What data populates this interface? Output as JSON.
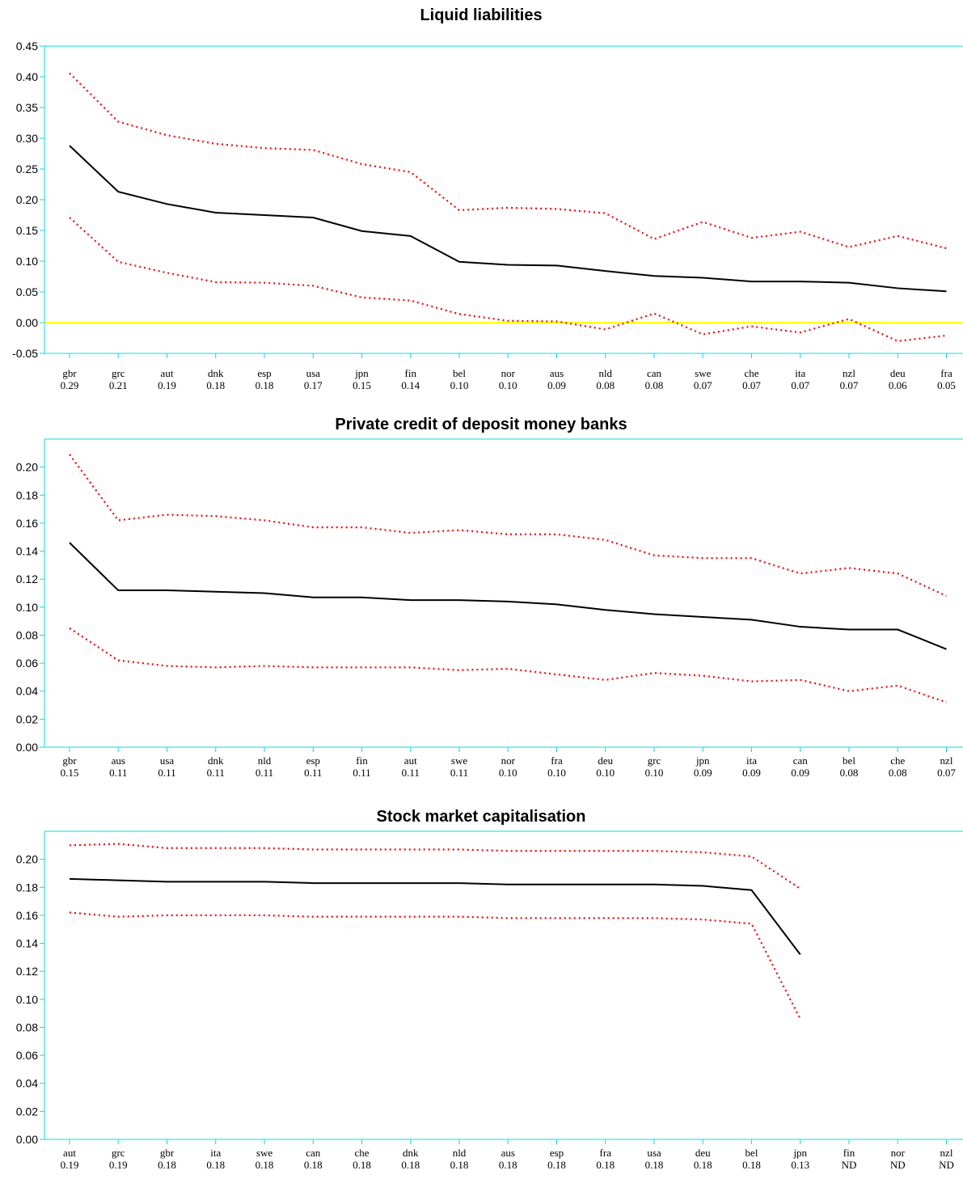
{
  "chart_data": [
    {
      "type": "line",
      "title": "Liquid liabilities",
      "ylim": [
        -0.05,
        0.45
      ],
      "yticks": [
        "-0.05",
        "0.00",
        "0.05",
        "0.10",
        "0.15",
        "0.20",
        "0.25",
        "0.30",
        "0.35",
        "0.40",
        "0.45"
      ],
      "categories": [
        "gbr",
        "grc",
        "aut",
        "dnk",
        "esp",
        "usa",
        "jpn",
        "fin",
        "bel",
        "nor",
        "aus",
        "nld",
        "can",
        "swe",
        "che",
        "ita",
        "nzl",
        "deu",
        "fra"
      ],
      "category_values": [
        "0.29",
        "0.21",
        "0.19",
        "0.18",
        "0.18",
        "0.17",
        "0.15",
        "0.14",
        "0.10",
        "0.10",
        "0.09",
        "0.08",
        "0.08",
        "0.07",
        "0.07",
        "0.07",
        "0.07",
        "0.06",
        "0.05"
      ],
      "zero_line": true,
      "series": [
        {
          "style": "solid",
          "color": "#000000",
          "values": [
            0.288,
            0.213,
            0.193,
            0.179,
            0.175,
            0.171,
            0.149,
            0.141,
            0.099,
            0.094,
            0.093,
            0.084,
            0.076,
            0.073,
            0.067,
            0.067,
            0.065,
            0.056,
            0.051
          ]
        },
        {
          "style": "dotted",
          "color": "#ff0000",
          "values": [
            0.406,
            0.327,
            0.305,
            0.291,
            0.284,
            0.281,
            0.258,
            0.245,
            0.183,
            0.187,
            0.185,
            0.178,
            0.136,
            0.164,
            0.138,
            0.148,
            0.123,
            0.141,
            0.121
          ]
        },
        {
          "style": "dotted",
          "color": "#ff0000",
          "values": [
            0.171,
            0.099,
            0.081,
            0.066,
            0.065,
            0.06,
            0.041,
            0.036,
            0.014,
            0.003,
            0.002,
            -0.011,
            0.015,
            -0.019,
            -0.006,
            -0.016,
            0.006,
            -0.03,
            -0.021
          ]
        }
      ]
    },
    {
      "type": "line",
      "title": "Private credit of deposit money banks",
      "ylim": [
        0.0,
        0.22
      ],
      "yticks": [
        "0.00",
        "0.02",
        "0.04",
        "0.06",
        "0.08",
        "0.10",
        "0.12",
        "0.14",
        "0.16",
        "0.18",
        "0.20"
      ],
      "categories": [
        "gbr",
        "aus",
        "usa",
        "dnk",
        "nld",
        "esp",
        "fin",
        "aut",
        "swe",
        "nor",
        "fra",
        "deu",
        "grc",
        "jpn",
        "ita",
        "can",
        "bel",
        "che",
        "nzl"
      ],
      "category_values": [
        "0.15",
        "0.11",
        "0.11",
        "0.11",
        "0.11",
        "0.11",
        "0.11",
        "0.11",
        "0.11",
        "0.10",
        "0.10",
        "0.10",
        "0.10",
        "0.09",
        "0.09",
        "0.09",
        "0.08",
        "0.08",
        "0.07"
      ],
      "zero_line": false,
      "series": [
        {
          "style": "solid",
          "color": "#000000",
          "values": [
            0.146,
            0.112,
            0.112,
            0.111,
            0.11,
            0.107,
            0.107,
            0.105,
            0.105,
            0.104,
            0.102,
            0.098,
            0.095,
            0.093,
            0.091,
            0.086,
            0.084,
            0.084,
            0.07
          ]
        },
        {
          "style": "dotted",
          "color": "#ff0000",
          "values": [
            0.209,
            0.162,
            0.166,
            0.165,
            0.162,
            0.157,
            0.157,
            0.153,
            0.155,
            0.152,
            0.152,
            0.148,
            0.137,
            0.135,
            0.135,
            0.124,
            0.128,
            0.124,
            0.108
          ]
        },
        {
          "style": "dotted",
          "color": "#ff0000",
          "values": [
            0.085,
            0.062,
            0.058,
            0.057,
            0.058,
            0.057,
            0.057,
            0.057,
            0.055,
            0.056,
            0.052,
            0.048,
            0.053,
            0.051,
            0.047,
            0.048,
            0.04,
            0.044,
            0.032
          ]
        }
      ]
    },
    {
      "type": "line",
      "title": "Stock market capitalisation",
      "ylim": [
        0.0,
        0.22
      ],
      "yticks": [
        "0.00",
        "0.02",
        "0.04",
        "0.06",
        "0.08",
        "0.10",
        "0.12",
        "0.14",
        "0.16",
        "0.18",
        "0.20"
      ],
      "categories": [
        "aut",
        "grc",
        "gbr",
        "ita",
        "swe",
        "can",
        "che",
        "dnk",
        "nld",
        "aus",
        "esp",
        "fra",
        "usa",
        "deu",
        "bel",
        "jpn",
        "fin",
        "nor",
        "nzl"
      ],
      "category_values": [
        "0.19",
        "0.19",
        "0.18",
        "0.18",
        "0.18",
        "0.18",
        "0.18",
        "0.18",
        "0.18",
        "0.18",
        "0.18",
        "0.18",
        "0.18",
        "0.18",
        "0.18",
        "0.13",
        "ND",
        "ND",
        "ND"
      ],
      "zero_line": false,
      "series": [
        {
          "style": "solid",
          "color": "#000000",
          "values": [
            0.186,
            0.185,
            0.184,
            0.184,
            0.184,
            0.183,
            0.183,
            0.183,
            0.183,
            0.182,
            0.182,
            0.182,
            0.182,
            0.181,
            0.178,
            0.132,
            null,
            null,
            null
          ]
        },
        {
          "style": "dotted",
          "color": "#ff0000",
          "values": [
            0.21,
            0.211,
            0.208,
            0.208,
            0.208,
            0.207,
            0.207,
            0.207,
            0.207,
            0.206,
            0.206,
            0.206,
            0.206,
            0.205,
            0.202,
            0.179,
            null,
            null,
            null
          ]
        },
        {
          "style": "dotted",
          "color": "#ff0000",
          "values": [
            0.162,
            0.159,
            0.16,
            0.16,
            0.16,
            0.159,
            0.159,
            0.159,
            0.159,
            0.158,
            0.158,
            0.158,
            0.158,
            0.157,
            0.154,
            0.086,
            null,
            null,
            null
          ]
        }
      ]
    }
  ],
  "colors": {
    "axis": "#00e0e0",
    "zero_line": "#ffff00",
    "estimate": "#000000",
    "bounds": "#ff0000"
  }
}
